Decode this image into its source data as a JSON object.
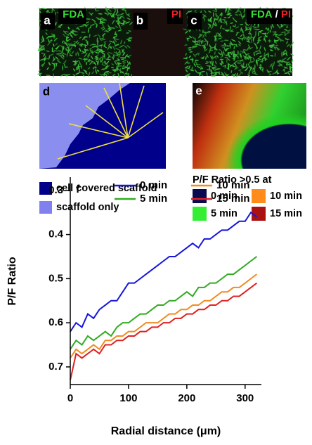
{
  "image_panels": [
    {
      "label": "a",
      "caption": [
        {
          "text": "FDA",
          "color": "#33dd33"
        }
      ]
    },
    {
      "label": "b",
      "caption": [
        {
          "text": "PI",
          "color": "#ee2222"
        }
      ]
    },
    {
      "label": "c",
      "caption": [
        {
          "text": "FDA",
          "color": "#33dd33"
        },
        {
          "text": "/",
          "color": "#ffffff"
        },
        {
          "text": "PI",
          "color": "#ee2222"
        }
      ]
    },
    {
      "label": "d"
    },
    {
      "label": "e"
    }
  ],
  "legend_d": [
    {
      "name": "cell covered scaffold",
      "color": "#00008b"
    },
    {
      "name": "scaffold only",
      "color": "#8080ee"
    }
  ],
  "legend_e": {
    "title": "P/F Ratio >0.5 at",
    "items": [
      {
        "name": "0 min",
        "color": "#0a0a50"
      },
      {
        "name": "10 min",
        "color": "#ff8c1a"
      },
      {
        "name": "5 min",
        "color": "#33ee33"
      },
      {
        "name": "15 min",
        "color": "#aa1111"
      }
    ]
  },
  "chart_data": {
    "type": "line",
    "panel_label": "f",
    "x_label": "Radial distance (μm)",
    "y_label": "P/F Ratio",
    "x": [
      0,
      10,
      20,
      30,
      40,
      50,
      60,
      70,
      80,
      90,
      100,
      110,
      120,
      130,
      140,
      150,
      160,
      170,
      180,
      190,
      200,
      210,
      220,
      230,
      240,
      250,
      260,
      270,
      280,
      290,
      300,
      310,
      320
    ],
    "series": [
      {
        "name": "0 min",
        "color": "#1515dd",
        "values": [
          0.62,
          0.6,
          0.61,
          0.58,
          0.59,
          0.57,
          0.56,
          0.55,
          0.55,
          0.53,
          0.51,
          0.51,
          0.5,
          0.49,
          0.48,
          0.47,
          0.46,
          0.45,
          0.45,
          0.44,
          0.43,
          0.42,
          0.43,
          0.41,
          0.41,
          0.4,
          0.39,
          0.39,
          0.38,
          0.37,
          0.37,
          0.35,
          0.36
        ]
      },
      {
        "name": "5 min",
        "color": "#33aa22",
        "values": [
          0.66,
          0.64,
          0.65,
          0.63,
          0.64,
          0.63,
          0.62,
          0.63,
          0.61,
          0.6,
          0.6,
          0.59,
          0.58,
          0.58,
          0.57,
          0.56,
          0.56,
          0.55,
          0.55,
          0.54,
          0.53,
          0.54,
          0.52,
          0.52,
          0.51,
          0.51,
          0.5,
          0.49,
          0.49,
          0.48,
          0.47,
          0.46,
          0.45
        ]
      },
      {
        "name": "10 min",
        "color": "#f08c20",
        "values": [
          0.68,
          0.66,
          0.67,
          0.66,
          0.65,
          0.66,
          0.64,
          0.64,
          0.63,
          0.63,
          0.62,
          0.62,
          0.61,
          0.6,
          0.6,
          0.6,
          0.59,
          0.58,
          0.58,
          0.57,
          0.57,
          0.56,
          0.56,
          0.55,
          0.55,
          0.54,
          0.53,
          0.53,
          0.52,
          0.52,
          0.51,
          0.5,
          0.49
        ]
      },
      {
        "name": "15 min",
        "color": "#e02020",
        "values": [
          0.73,
          0.67,
          0.68,
          0.67,
          0.66,
          0.67,
          0.65,
          0.65,
          0.64,
          0.64,
          0.63,
          0.63,
          0.62,
          0.62,
          0.61,
          0.61,
          0.6,
          0.6,
          0.59,
          0.59,
          0.58,
          0.58,
          0.57,
          0.57,
          0.56,
          0.56,
          0.55,
          0.55,
          0.54,
          0.54,
          0.53,
          0.52,
          0.51
        ]
      }
    ],
    "xlim": [
      0,
      328
    ],
    "xticks": [
      0,
      100,
      200,
      300
    ],
    "ylim": [
      0.74,
      0.27
    ],
    "yticks": [
      0.3,
      0.4,
      0.5,
      0.6,
      0.7
    ]
  }
}
